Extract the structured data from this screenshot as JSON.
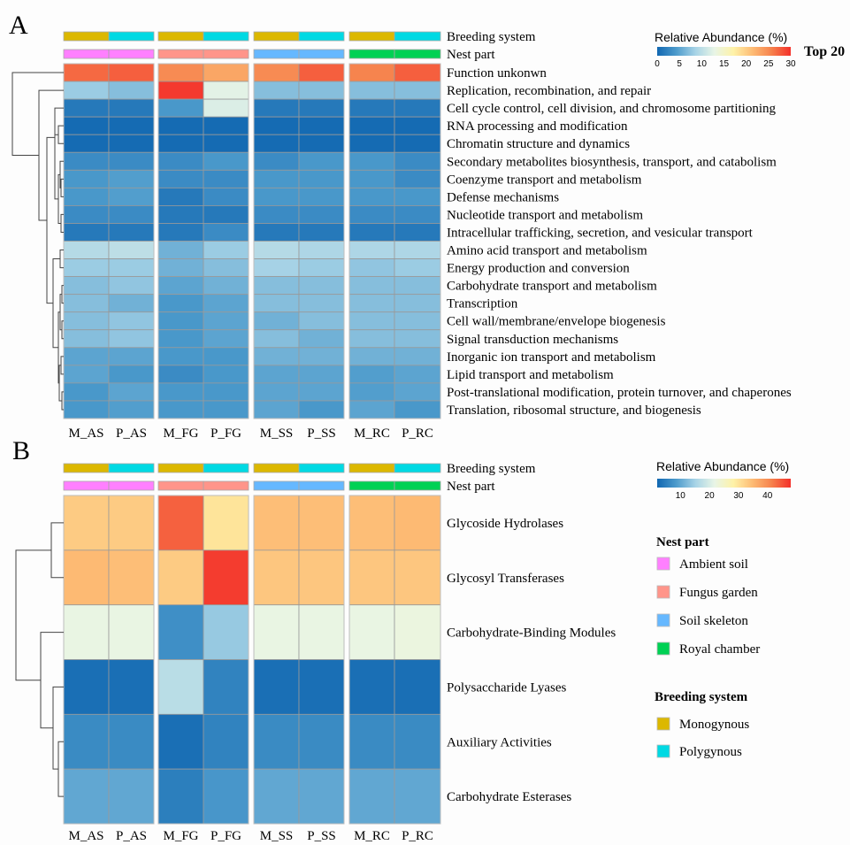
{
  "chart_data": [
    {
      "type": "heatmap",
      "panel": "A",
      "title": "Top 20",
      "colorbar": {
        "title": "Relative Abundance (%)",
        "range": [
          0,
          30
        ],
        "ticks": [
          0,
          5,
          10,
          15,
          20,
          25,
          30
        ]
      },
      "columns": [
        "M_AS",
        "P_AS",
        "M_FG",
        "P_FG",
        "M_SS",
        "P_SS",
        "M_RC",
        "P_RC"
      ],
      "annotations": {
        "Breeding system": [
          "Monogynous",
          "Polygynous",
          "Monogynous",
          "Polygynous",
          "Monogynous",
          "Polygynous",
          "Monogynous",
          "Polygynous"
        ],
        "Nest part": [
          "Ambient soil",
          "Ambient soil",
          "Fungus garden",
          "Fungus garden",
          "Soil skeleton",
          "Soil skeleton",
          "Royal chamber",
          "Royal chamber"
        ]
      },
      "rows": [
        "Function unkonwn",
        "Replication, recombination, and repair",
        "Cell cycle control, cell division, and chromosome partitioning",
        "RNA processing and modification",
        "Chromatin structure and dynamics",
        "Secondary metabolites biosynthesis, transport, and catabolism",
        "Coenzyme transport and metabolism",
        "Defense mechanisms",
        "Nucleotide transport and metabolism",
        "Intracellular trafficking, secretion, and vesicular transport",
        "Amino acid transport and metabolism",
        "Energy production and conversion",
        "Carbohydrate transport and metabolism",
        "Transcription",
        "Cell wall/membrane/envelope biogenesis",
        "Signal transduction mechanisms",
        "Inorganic ion transport and metabolism",
        "Lipid transport and metabolism",
        "Post-translational modification, protein turnover, and chaperones",
        "Translation, ribosomal structure, and biogenesis"
      ],
      "values": [
        [
          27,
          27.5,
          25,
          23,
          25,
          27.5,
          25.5,
          27.5
        ],
        [
          8,
          7,
          29.5,
          12.5,
          7,
          7,
          7,
          7
        ],
        [
          1.5,
          1.5,
          4,
          12,
          1.5,
          1.5,
          1.5,
          1.5
        ],
        [
          0.3,
          0.3,
          0.3,
          0.3,
          0.3,
          0.3,
          0.3,
          0.3
        ],
        [
          0.3,
          0.3,
          0.3,
          0.3,
          0.3,
          0.3,
          0.3,
          0.3
        ],
        [
          3,
          3,
          3,
          4,
          3,
          4,
          4,
          3
        ],
        [
          4,
          4.5,
          3,
          3,
          4,
          4,
          4,
          3
        ],
        [
          4,
          4.5,
          1.5,
          3,
          4,
          4,
          4,
          4
        ],
        [
          3,
          3,
          1.5,
          1.5,
          3,
          3,
          3,
          3
        ],
        [
          1.5,
          1.5,
          1.5,
          3,
          1.5,
          1.5,
          1.5,
          1.5
        ],
        [
          9.5,
          10,
          6,
          8,
          9.5,
          9,
          9,
          9
        ],
        [
          8,
          8,
          6,
          7,
          8.5,
          8,
          7.5,
          8
        ],
        [
          7,
          7.5,
          5,
          6,
          7,
          7,
          7,
          7
        ],
        [
          7,
          6,
          4,
          5,
          7,
          7,
          7,
          7
        ],
        [
          7,
          7.5,
          4,
          5,
          6,
          7,
          7,
          7
        ],
        [
          7,
          7.5,
          4,
          5,
          7,
          6,
          7,
          7
        ],
        [
          5,
          5,
          4,
          4,
          6,
          6,
          6,
          6
        ],
        [
          5,
          4,
          3,
          4,
          5,
          5,
          4.5,
          5
        ],
        [
          4,
          5,
          4,
          4,
          5,
          5,
          4.5,
          5
        ],
        [
          4,
          4.5,
          4,
          4,
          5,
          4,
          5,
          4
        ]
      ]
    },
    {
      "type": "heatmap",
      "panel": "B",
      "colorbar": {
        "title": "Relative Abundance (%)",
        "range": [
          2,
          48
        ],
        "ticks": [
          10,
          20,
          30,
          40
        ]
      },
      "columns": [
        "M_AS",
        "P_AS",
        "M_FG",
        "P_FG",
        "M_SS",
        "P_SS",
        "M_RC",
        "P_RC"
      ],
      "annotations": {
        "Breeding system": [
          "Monogynous",
          "Polygynous",
          "Monogynous",
          "Polygynous",
          "Monogynous",
          "Polygynous",
          "Monogynous",
          "Polygynous"
        ],
        "Nest part": [
          "Ambient soil",
          "Ambient soil",
          "Fungus garden",
          "Fungus garden",
          "Soil skeleton",
          "Soil skeleton",
          "Royal chamber",
          "Royal chamber"
        ]
      },
      "rows": [
        "Glycoside Hydrolases",
        "Glycosyl Transferases",
        "Carbohydrate-Binding Modules",
        "Polysaccharide Lyases",
        "Auxiliary Activities",
        "Carbohydrate Esterases"
      ],
      "values": [
        [
          33,
          33,
          44,
          30,
          34.5,
          34.5,
          34.5,
          35
        ],
        [
          35,
          34.5,
          33,
          47,
          33.5,
          33.5,
          33.5,
          33.5
        ],
        [
          22,
          22,
          7,
          14,
          22,
          22,
          22,
          22.5
        ],
        [
          3,
          3,
          17,
          5.5,
          3,
          3,
          3,
          3
        ],
        [
          6.5,
          6.5,
          3,
          5.5,
          6.5,
          6.5,
          6.5,
          6.5
        ],
        [
          10,
          10,
          5,
          8,
          10,
          10,
          10,
          10
        ]
      ]
    }
  ],
  "labels": {
    "panel_a": "A",
    "panel_b": "B",
    "breeding_system": "Breeding system",
    "nest_part": "Nest part",
    "top20": "Top 20",
    "colorbar_title": "Relative Abundance (%)"
  },
  "legend": {
    "nest_part": {
      "title": "Nest part",
      "items": [
        {
          "label": "Ambient soil",
          "color": "#ff80ff"
        },
        {
          "label": "Fungus garden",
          "color": "#ff958a"
        },
        {
          "label": "Soil skeleton",
          "color": "#66b8ff"
        },
        {
          "label": "Royal chamber",
          "color": "#00d154"
        }
      ]
    },
    "breeding_system": {
      "title": "Breeding system",
      "items": [
        {
          "label": "Monogynous",
          "color": "#dcb800"
        },
        {
          "label": "Polygynous",
          "color": "#00d9e3"
        }
      ]
    }
  },
  "colormap": [
    "#1167b1",
    "#4d9bcc",
    "#a7d3e6",
    "#e8f5e6",
    "#fef2a8",
    "#fdbb74",
    "#f6814c",
    "#f4302a"
  ]
}
